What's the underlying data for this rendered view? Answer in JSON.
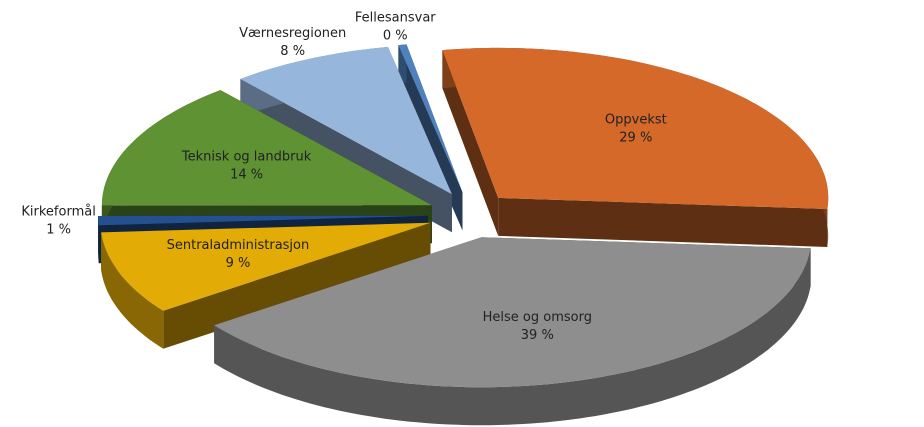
{
  "chart_data": {
    "type": "pie",
    "categories": [
      "Oppvekst",
      "Helse og omsorg",
      "Sentraladministrasjon",
      "Kirkeformål",
      "Teknisk og landbruk",
      "Værnesregionen",
      "Fellesansvar"
    ],
    "values": [
      29,
      39,
      9,
      1,
      14,
      8,
      0.4
    ],
    "value_labels": [
      "29 %",
      "39 %",
      "9 %",
      "1 %",
      "14 %",
      "8 %",
      "0 %"
    ],
    "colors": [
      "#d4692a",
      "#8e8e8e",
      "#e3ab06",
      "#24508f",
      "#5e9232",
      "#97b6dc",
      "#4f81bd"
    ]
  }
}
